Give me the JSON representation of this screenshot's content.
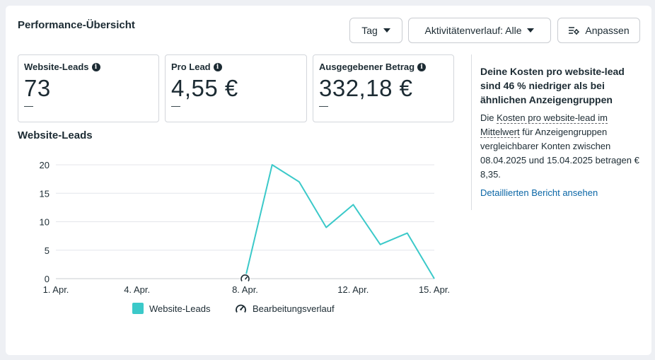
{
  "header": {
    "title": "Performance-Übersicht",
    "day_button": "Tag",
    "activity_button": "Aktivitätenverlauf: Alle",
    "customize_button": "Anpassen"
  },
  "metrics": [
    {
      "label": "Website-Leads",
      "value": "73",
      "change": "—"
    },
    {
      "label": "Pro Lead",
      "value": "4,55 €",
      "change": "—"
    },
    {
      "label": "Ausgegebener Betrag",
      "value": "332,18 €",
      "change": "—"
    }
  ],
  "insight": {
    "title": "Deine Kosten pro website-lead sind 46 % niedriger als bei ähnlichen Anzeigengruppen",
    "body_prefix": "Die ",
    "body_link_term": "Kosten pro website-lead im Mittelwert",
    "body_suffix": " für Anzeigengruppen vergleichbarer Konten zwischen 08.04.2025 und 15.04.2025 betragen € 8,35.",
    "link": "Detaillierten Bericht ansehen"
  },
  "colors": {
    "series": "#3bc9c9",
    "link": "#0a66a6"
  },
  "chart_data": {
    "type": "line",
    "title": "Website-Leads",
    "x": [
      "08.04.",
      "09.04.",
      "10.04.",
      "11.04.",
      "12.04.",
      "13.04.",
      "14.04.",
      "15.04."
    ],
    "x_ticks": [
      "1. Apr.",
      "4. Apr.",
      "8. Apr.",
      "12. Apr.",
      "15. Apr."
    ],
    "x_tick_days": [
      1,
      4,
      8,
      12,
      15
    ],
    "x_days": [
      8,
      9,
      10,
      11,
      12,
      13,
      14,
      15
    ],
    "series": [
      {
        "name": "Website-Leads",
        "values": [
          0,
          20,
          17,
          9,
          13,
          6,
          8,
          0
        ]
      }
    ],
    "ylim": [
      0,
      20
    ],
    "y_ticks": [
      0,
      5,
      10,
      15,
      20
    ],
    "grid": true,
    "legend": [
      "Website-Leads",
      "Bearbeitungsverlauf"
    ],
    "legend_position": "bottom"
  }
}
